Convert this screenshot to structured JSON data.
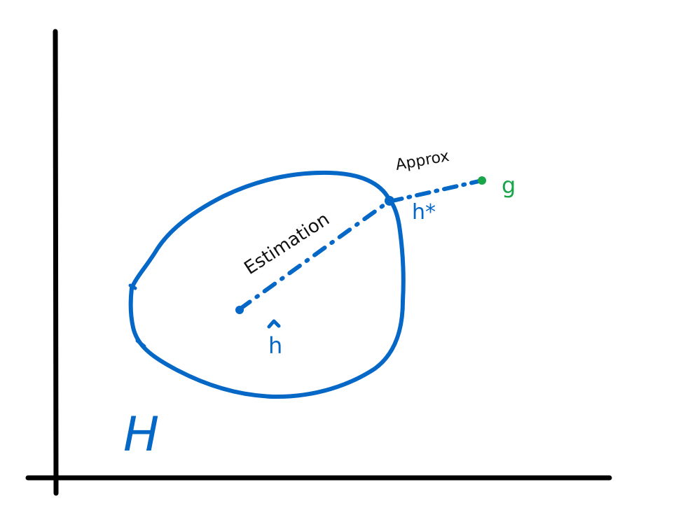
{
  "labels": {
    "approx": "Approx",
    "estimation": "Estimation",
    "g": "g",
    "h_star": "h*",
    "h_hat": "h",
    "hypothesis_space": "H"
  },
  "colors": {
    "ink_blue": "#0567c6",
    "ink_green": "#1aa54b",
    "ink_black": "#000000",
    "text_black": "#111111"
  }
}
